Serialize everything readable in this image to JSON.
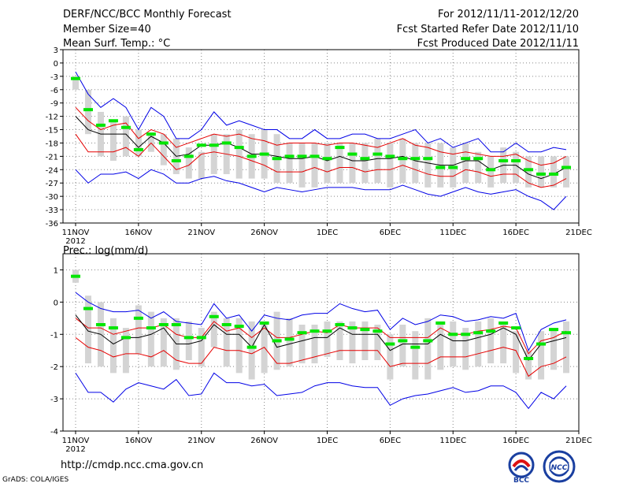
{
  "header": {
    "title": "DERF/NCC/BCC Monthly Forecast",
    "member": "Member Size=40",
    "period": "For 2012/11/11-2012/12/20",
    "started": "Fcst Started Refer Date 2012/11/10",
    "produced": "Fcst Produced Date 2012/11/11"
  },
  "footer": {
    "url": "http://cmdp.ncc.cma.gov.cn",
    "grads": "GrADS: COLA/IGES"
  },
  "logos": {
    "bcc_text": "BCC",
    "ncc_text": "NCC"
  },
  "colors": {
    "box": "#d4d4d4",
    "mean": "#00e600",
    "blue": "#0000e6",
    "red": "#e60000",
    "black": "#000000",
    "grid": "#888888"
  },
  "chart_data": [
    {
      "type": "box-range",
      "title": "Mean Surf. Temp.: °C",
      "xlabel_year": "2012",
      "x_ticks": [
        "11NOV",
        "16NOV",
        "21NOV",
        "26NOV",
        "1DEC",
        "6DEC",
        "11DEC",
        "16DEC",
        "21DEC"
      ],
      "ylim": [
        -36,
        3
      ],
      "y_ticks": [
        3,
        0,
        -3,
        -6,
        -9,
        -12,
        -15,
        -18,
        -21,
        -24,
        -27,
        -30,
        -33,
        -36
      ],
      "days": 40,
      "series": {
        "box_top": [
          -3,
          -6,
          -11,
          -13,
          -12,
          -15,
          -16,
          -16,
          -17,
          -19,
          -20,
          -16,
          -16,
          -15,
          -16,
          -15,
          -16,
          -18,
          -18,
          -18,
          -18,
          -18,
          -18,
          -18,
          -17,
          -18,
          -17,
          -18,
          -18,
          -18,
          -19,
          -18,
          -20,
          -21,
          -19,
          -20,
          -21,
          -21,
          -21,
          -21
        ],
        "box_bottom": [
          -6,
          -16,
          -21,
          -22,
          -21,
          -21,
          -20,
          -23,
          -25,
          -26,
          -26,
          -25,
          -25,
          -26,
          -26,
          -26,
          -27,
          -27,
          -28,
          -28,
          -27,
          -27,
          -27,
          -27,
          -27,
          -28,
          -27,
          -27,
          -28,
          -28,
          -28,
          -27,
          -27,
          -28,
          -27,
          -27,
          -28,
          -28,
          -28,
          -28
        ],
        "ens_mean": [
          -3.5,
          -10.5,
          -14,
          -13,
          -14.5,
          -19.5,
          -16,
          -18,
          -22,
          -21,
          -18.5,
          -18.5,
          -18,
          -19,
          -21,
          -20.5,
          -21.5,
          -21,
          -21,
          -21,
          -21.5,
          -19,
          -20.5,
          -21.5,
          -20.5,
          -21,
          -21.5,
          -21.5,
          -21.5,
          -23.5,
          -23.5,
          -21.5,
          -21.5,
          -24,
          -22,
          -22,
          -24,
          -25,
          -25,
          -23.5
        ],
        "max": [
          -2,
          -7,
          -10,
          -8,
          -10,
          -15,
          -10,
          -12,
          -17,
          -17,
          -15,
          -11,
          -14,
          -13,
          -14,
          -15,
          -15,
          -17,
          -17,
          -15,
          -17,
          -17,
          -16,
          -16,
          -17,
          -17,
          -16,
          -15,
          -18,
          -17,
          -19,
          -18,
          -17,
          -20,
          -20,
          -18,
          -20,
          -20,
          -19,
          -19.5
        ],
        "red_upper": [
          -10,
          -13,
          -15,
          -14,
          -13.5,
          -17,
          -15,
          -16,
          -19,
          -18,
          -17,
          -16,
          -16.5,
          -16,
          -17,
          -17.5,
          -18.5,
          -18,
          -18,
          -18,
          -18.5,
          -18,
          -18,
          -18.5,
          -19,
          -18,
          -17,
          -18.5,
          -19,
          -20,
          -20.5,
          -20,
          -20.5,
          -21,
          -21,
          -20.5,
          -22,
          -23,
          -22.5,
          -21
        ],
        "mean_line": [
          -12,
          -15,
          -16,
          -16,
          -16,
          -19,
          -16.5,
          -18,
          -21,
          -20.5,
          -18.5,
          -18.5,
          -18,
          -19,
          -20.5,
          -20.5,
          -21,
          -21.5,
          -21.5,
          -21,
          -22,
          -21,
          -22,
          -22,
          -21.5,
          -21.5,
          -21,
          -22,
          -22.5,
          -23,
          -23,
          -22,
          -22,
          -24,
          -23,
          -23,
          -25,
          -26,
          -25,
          -23.5
        ],
        "red_lower": [
          -16,
          -20,
          -20,
          -20,
          -19,
          -21,
          -18,
          -21,
          -24,
          -23,
          -20.5,
          -20,
          -20.5,
          -21,
          -22,
          -23,
          -24.5,
          -24.5,
          -24.5,
          -23.5,
          -24.5,
          -23.5,
          -23.5,
          -24.5,
          -24,
          -24,
          -23,
          -24,
          -25,
          -25.5,
          -25.5,
          -24,
          -24.5,
          -25.5,
          -25,
          -25,
          -27,
          -28,
          -27.5,
          -26
        ],
        "min": [
          -24,
          -27,
          -25,
          -25,
          -24.5,
          -26,
          -24,
          -25,
          -27,
          -27,
          -26,
          -25.5,
          -26.5,
          -27,
          -28,
          -29,
          -28,
          -28.5,
          -29,
          -28.5,
          -28,
          -28,
          -28,
          -28.5,
          -28.5,
          -28.5,
          -27.5,
          -28.5,
          -29.5,
          -30,
          -29,
          -28,
          -29,
          -29.5,
          -29,
          -28.5,
          -30,
          -31,
          -33,
          -30
        ]
      }
    },
    {
      "type": "box-range",
      "title": "Prec.: log(mm/d)",
      "xlabel_year": "2012",
      "x_ticks": [
        "11NOV",
        "16NOV",
        "21NOV",
        "26NOV",
        "1DEC",
        "6DEC",
        "11DEC",
        "16DEC",
        "21DEC"
      ],
      "ylim": [
        -4,
        1.5
      ],
      "y_ticks": [
        1,
        0,
        -1,
        -2,
        -3,
        -4
      ],
      "days": 40,
      "series": {
        "box_top": [
          1.0,
          0.2,
          0.0,
          -0.5,
          -0.8,
          -0.1,
          -0.3,
          -0.5,
          -0.5,
          -0.6,
          -0.8,
          -0.3,
          -0.5,
          -0.5,
          -0.6,
          -0.6,
          -0.3,
          -0.5,
          -0.7,
          -0.7,
          -0.6,
          -0.6,
          -0.6,
          -0.6,
          -0.7,
          -1.0,
          -0.7,
          -0.9,
          -0.5,
          -0.6,
          -0.6,
          -0.8,
          -0.6,
          -0.5,
          -0.7,
          -0.9,
          -1.5,
          -0.9,
          -0.8,
          -0.6
        ],
        "box_bottom": [
          0.6,
          -1.9,
          -2.0,
          -2.2,
          -2.2,
          -1.6,
          -2.0,
          -2.0,
          -2.1,
          -1.8,
          -2.0,
          -1.4,
          -2.0,
          -2.2,
          -2.4,
          -2.2,
          -2.1,
          -2.0,
          -1.9,
          -1.9,
          -1.7,
          -1.8,
          -1.9,
          -1.8,
          -1.8,
          -2.4,
          -2.0,
          -2.4,
          -2.4,
          -2.1,
          -2.0,
          -2.1,
          -2.0,
          -1.9,
          -1.9,
          -2.2,
          -2.4,
          -2.4,
          -2.1,
          -2.2
        ],
        "ens_mean": [
          0.8,
          -0.2,
          -0.7,
          -0.8,
          -1.1,
          -0.5,
          -0.8,
          -0.7,
          -0.7,
          -1.1,
          -1.1,
          -0.45,
          -0.7,
          -0.75,
          -1.4,
          -0.65,
          -1.2,
          -1.15,
          -0.95,
          -0.9,
          -0.9,
          -0.7,
          -0.8,
          -0.85,
          -0.9,
          -1.3,
          -1.2,
          -1.4,
          -1.2,
          -0.65,
          -1.0,
          -1.0,
          -0.95,
          -0.9,
          -0.65,
          -0.8,
          -1.75,
          -1.3,
          -0.85,
          -0.95
        ],
        "max": [
          0.3,
          0.0,
          -0.2,
          -0.3,
          -0.3,
          -0.25,
          -0.5,
          -0.3,
          -0.6,
          -0.65,
          -0.7,
          -0.05,
          -0.5,
          -0.4,
          -0.9,
          -0.4,
          -0.5,
          -0.55,
          -0.4,
          -0.35,
          -0.35,
          -0.05,
          -0.2,
          -0.3,
          -0.25,
          -0.85,
          -0.5,
          -0.7,
          -0.6,
          -0.4,
          -0.45,
          -0.6,
          -0.55,
          -0.45,
          -0.5,
          -0.35,
          -1.5,
          -0.85,
          -0.65,
          -0.55
        ],
        "red_upper": [
          -0.5,
          -0.8,
          -0.8,
          -1.0,
          -0.9,
          -0.8,
          -0.8,
          -0.7,
          -1.0,
          -1.1,
          -1.1,
          -0.6,
          -0.9,
          -0.8,
          -1.1,
          -0.8,
          -1.1,
          -1.1,
          -1.0,
          -0.9,
          -0.95,
          -0.7,
          -0.8,
          -0.8,
          -0.8,
          -1.1,
          -1.1,
          -1.1,
          -1.1,
          -0.8,
          -1.0,
          -1.0,
          -0.9,
          -0.85,
          -0.75,
          -0.8,
          -1.6,
          -1.2,
          -1.1,
          -0.9
        ],
        "mean_line": [
          -0.4,
          -0.9,
          -1.0,
          -1.3,
          -1.1,
          -1.1,
          -1.0,
          -0.8,
          -1.3,
          -1.3,
          -1.2,
          -0.7,
          -1.0,
          -1.0,
          -1.4,
          -0.7,
          -1.4,
          -1.3,
          -1.2,
          -1.1,
          -1.1,
          -0.8,
          -1.0,
          -1.0,
          -1.0,
          -1.5,
          -1.3,
          -1.3,
          -1.3,
          -1.0,
          -1.2,
          -1.2,
          -1.1,
          -1.0,
          -0.8,
          -1.0,
          -1.8,
          -1.3,
          -1.2,
          -1.1
        ],
        "red_lower": [
          -1.1,
          -1.4,
          -1.5,
          -1.7,
          -1.6,
          -1.6,
          -1.7,
          -1.5,
          -1.8,
          -1.9,
          -1.9,
          -1.4,
          -1.5,
          -1.5,
          -1.6,
          -1.4,
          -1.9,
          -1.9,
          -1.8,
          -1.7,
          -1.6,
          -1.5,
          -1.5,
          -1.5,
          -1.5,
          -2.0,
          -1.9,
          -1.9,
          -1.9,
          -1.7,
          -1.7,
          -1.7,
          -1.6,
          -1.5,
          -1.4,
          -1.5,
          -2.3,
          -2.0,
          -1.9,
          -1.7
        ],
        "min": [
          -2.2,
          -2.8,
          -2.8,
          -3.1,
          -2.7,
          -2.5,
          -2.6,
          -2.7,
          -2.4,
          -2.9,
          -2.85,
          -2.2,
          -2.5,
          -2.5,
          -2.6,
          -2.55,
          -2.9,
          -2.85,
          -2.8,
          -2.6,
          -2.5,
          -2.5,
          -2.6,
          -2.65,
          -2.65,
          -3.2,
          -3.0,
          -2.9,
          -2.85,
          -2.75,
          -2.65,
          -2.8,
          -2.75,
          -2.6,
          -2.6,
          -2.8,
          -3.3,
          -2.8,
          -3.0,
          -2.6
        ]
      }
    }
  ]
}
